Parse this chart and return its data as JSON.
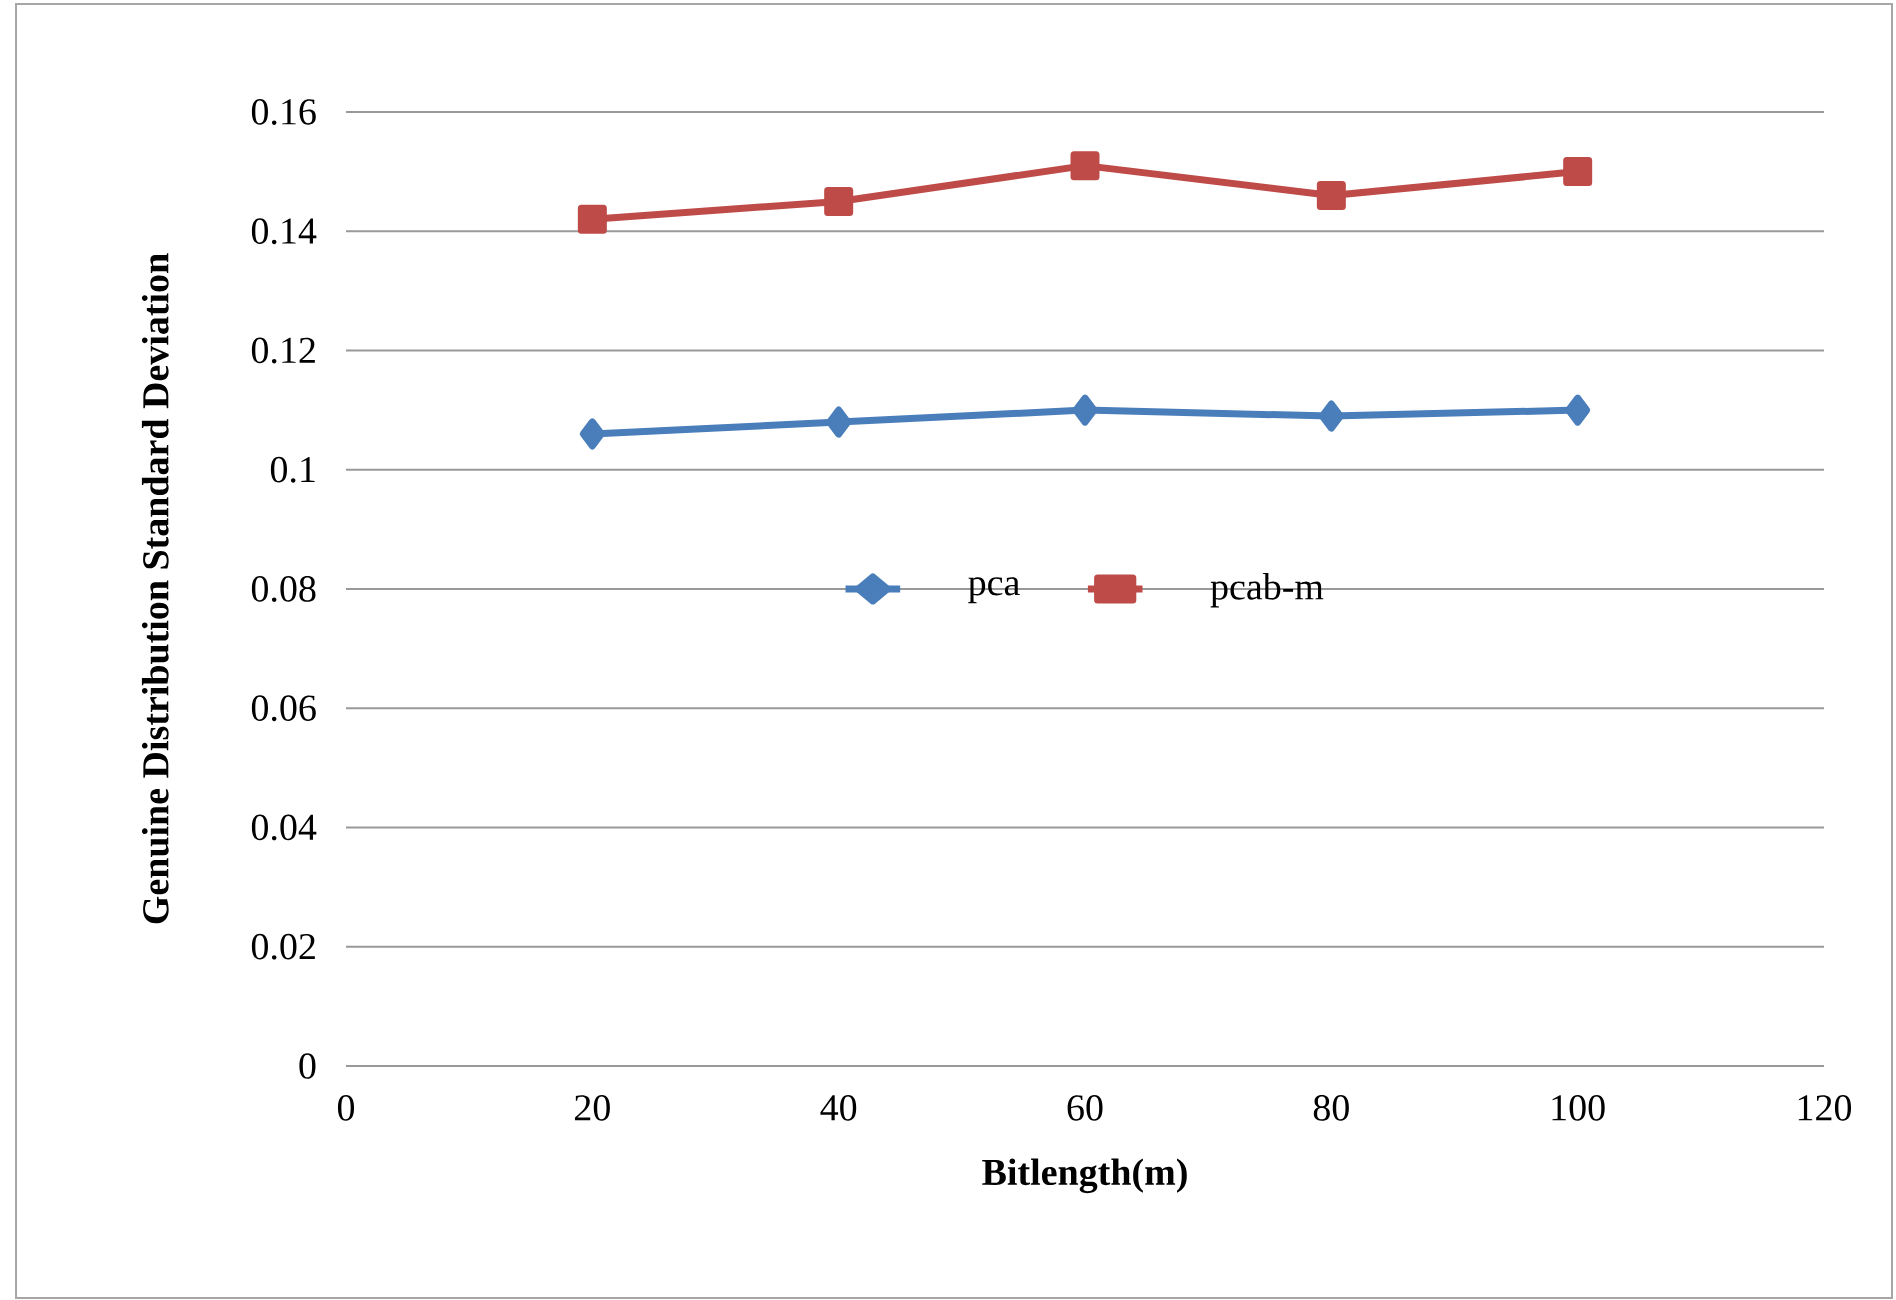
{
  "chart_data": {
    "type": "line",
    "xlabel": "Bitlength(m)",
    "ylabel": "Genuine Distribution Standard Deviation",
    "x": [
      20,
      40,
      60,
      80,
      100
    ],
    "series": [
      {
        "name": "pca",
        "color": "#4a7ebb",
        "marker": "diamond",
        "values": [
          0.106,
          0.108,
          0.11,
          0.109,
          0.11
        ]
      },
      {
        "name": "pcab-m",
        "color": "#be4b48",
        "marker": "square",
        "values": [
          0.142,
          0.145,
          0.151,
          0.146,
          0.15
        ]
      }
    ],
    "xlim": [
      0,
      120
    ],
    "xticks": [
      0,
      20,
      40,
      60,
      80,
      100,
      120
    ],
    "ylim": [
      0,
      0.16
    ],
    "yticks": [
      0,
      0.02,
      0.04,
      0.06,
      0.08,
      0.1,
      0.12,
      0.14,
      0.16
    ],
    "grid": "y",
    "legend": "center"
  }
}
